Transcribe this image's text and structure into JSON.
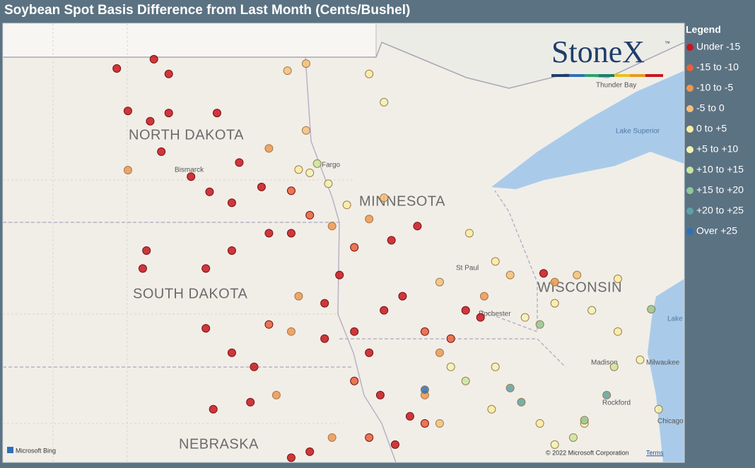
{
  "title": "Soybean Spot Basis Difference from Last Month (Cents/Bushel)",
  "logo": {
    "name": "StoneX",
    "mark": "™"
  },
  "legend": {
    "title": "Legend",
    "items": [
      {
        "label": "Under -15",
        "color": "#c8161d"
      },
      {
        "label": "-15 to -10",
        "color": "#e8603a"
      },
      {
        "label": "-10 to -5",
        "color": "#f0964f"
      },
      {
        "label": "-5 to 0",
        "color": "#f6c07a"
      },
      {
        "label": "0 to +5",
        "color": "#f9eca2"
      },
      {
        "label": "+5 to +10",
        "color": "#f1f3b2"
      },
      {
        "label": "+10 to +15",
        "color": "#c9e5a0"
      },
      {
        "label": "+15 to +20",
        "color": "#8fc898"
      },
      {
        "label": "+20 to +25",
        "color": "#5ba4a4"
      },
      {
        "label": "Over +25",
        "color": "#2f70b8"
      }
    ]
  },
  "map": {
    "states": [
      "NORTH DAKOTA",
      "SOUTH DAKOTA",
      "MINNESOTA",
      "WISCONSIN",
      "NEBRASKA"
    ],
    "places": [
      "Bismarck",
      "Fargo",
      "St Paul",
      "Rochester",
      "Madison",
      "Milwaukee",
      "Rockford",
      "Chicago",
      "Thunder Bay",
      "Lake Superior",
      "Lake Michigan"
    ],
    "attribution": "Microsoft Bing",
    "copyright": "© 2022 Microsoft Corporation",
    "terms": "Terms"
  },
  "points": [
    [
      -102.3,
      48.67,
      0
    ],
    [
      -101.3,
      48.84,
      0
    ],
    [
      -100.9,
      48.57,
      0
    ],
    [
      -102.0,
      47.89,
      0
    ],
    [
      -101.4,
      47.7,
      0
    ],
    [
      -100.9,
      47.85,
      0
    ],
    [
      -101.1,
      47.14,
      0
    ],
    [
      -100.3,
      46.68,
      0
    ],
    [
      -99.8,
      46.4,
      0
    ],
    [
      -99.2,
      46.2,
      0
    ],
    [
      -99.6,
      47.85,
      0
    ],
    [
      -99.0,
      46.94,
      0
    ],
    [
      -98.4,
      46.49,
      0
    ],
    [
      -102.0,
      46.8,
      2
    ],
    [
      -98.2,
      47.2,
      2
    ],
    [
      -97.7,
      48.63,
      3
    ],
    [
      -97.2,
      48.76,
      3
    ],
    [
      -97.2,
      47.53,
      3
    ],
    [
      -97.6,
      46.42,
      1
    ],
    [
      -97.4,
      46.81,
      4
    ],
    [
      -97.1,
      46.75,
      5
    ],
    [
      -96.9,
      46.92,
      6
    ],
    [
      -96.6,
      46.55,
      5
    ],
    [
      -96.1,
      46.16,
      4
    ],
    [
      -95.5,
      48.57,
      4
    ],
    [
      -95.1,
      48.05,
      5
    ],
    [
      -101.5,
      45.32,
      0
    ],
    [
      -101.6,
      44.99,
      0
    ],
    [
      -99.9,
      44.99,
      0
    ],
    [
      -99.2,
      45.32,
      0
    ],
    [
      -98.2,
      45.64,
      0
    ],
    [
      -99.9,
      43.89,
      0
    ],
    [
      -99.2,
      43.44,
      0
    ],
    [
      -98.6,
      43.18,
      0
    ],
    [
      -98.2,
      43.96,
      1
    ],
    [
      -97.6,
      43.83,
      2
    ],
    [
      -97.4,
      44.48,
      2
    ],
    [
      -96.7,
      44.35,
      0
    ],
    [
      -96.3,
      44.87,
      0
    ],
    [
      -96.7,
      43.7,
      0
    ],
    [
      -98.0,
      42.66,
      2
    ],
    [
      -98.7,
      42.53,
      0
    ],
    [
      -99.7,
      42.4,
      0
    ],
    [
      -95.9,
      43.83,
      0
    ],
    [
      -95.5,
      43.44,
      0
    ],
    [
      -95.1,
      44.22,
      0
    ],
    [
      -94.6,
      44.48,
      0
    ],
    [
      -94.0,
      43.83,
      1
    ],
    [
      -93.6,
      43.44,
      2
    ],
    [
      -93.3,
      43.7,
      1
    ],
    [
      -92.9,
      44.22,
      0
    ],
    [
      -92.5,
      44.09,
      0
    ],
    [
      -95.9,
      42.92,
      1
    ],
    [
      -95.2,
      42.66,
      0
    ],
    [
      -94.4,
      42.27,
      0
    ],
    [
      -94.0,
      42.66,
      2
    ],
    [
      -93.6,
      42.14,
      3
    ],
    [
      -97.1,
      41.62,
      0
    ],
    [
      -96.5,
      41.88,
      2
    ],
    [
      -97.6,
      41.51,
      0
    ],
    [
      -95.5,
      41.88,
      1
    ],
    [
      -94.8,
      41.75,
      0
    ],
    [
      -94.0,
      42.14,
      1
    ],
    [
      -97.6,
      45.64,
      0
    ],
    [
      -97.1,
      45.97,
      1
    ],
    [
      -96.5,
      45.77,
      2
    ],
    [
      -95.9,
      45.38,
      1
    ],
    [
      -95.5,
      45.9,
      2
    ],
    [
      -95.1,
      46.29,
      3
    ],
    [
      -94.2,
      45.77,
      0
    ],
    [
      -94.9,
      45.51,
      0
    ],
    [
      -93.6,
      44.74,
      3
    ],
    [
      -92.8,
      45.64,
      4
    ],
    [
      -92.1,
      45.12,
      4
    ],
    [
      -91.7,
      44.87,
      3
    ],
    [
      -92.4,
      44.48,
      2
    ],
    [
      -93.3,
      43.18,
      5
    ],
    [
      -92.9,
      42.92,
      6
    ],
    [
      -92.1,
      43.18,
      5
    ],
    [
      -91.7,
      42.79,
      8
    ],
    [
      -91.4,
      42.53,
      8
    ],
    [
      -94.0,
      42.76,
      9
    ],
    [
      -92.2,
      42.4,
      4
    ],
    [
      -90.9,
      42.14,
      4
    ],
    [
      -90.5,
      41.75,
      5
    ],
    [
      -90.9,
      43.96,
      7
    ],
    [
      -91.3,
      44.09,
      5
    ],
    [
      -90.5,
      44.35,
      4
    ],
    [
      -89.5,
      44.22,
      5
    ],
    [
      -88.8,
      43.83,
      4
    ],
    [
      -88.2,
      43.31,
      5
    ],
    [
      -87.9,
      44.24,
      7
    ],
    [
      -89.1,
      42.66,
      8
    ],
    [
      -88.9,
      43.18,
      6
    ],
    [
      -89.7,
      42.14,
      5
    ],
    [
      -90.8,
      44.9,
      0
    ],
    [
      -90.5,
      44.74,
      2
    ],
    [
      -89.9,
      44.87,
      3
    ],
    [
      -88.8,
      44.8,
      4
    ],
    [
      -89.7,
      42.2,
      7
    ],
    [
      -90.0,
      41.88,
      6
    ],
    [
      -87.7,
      42.4,
      5
    ]
  ]
}
